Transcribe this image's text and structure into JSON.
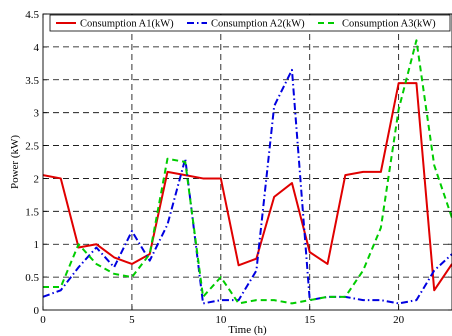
{
  "chart_data": {
    "type": "line",
    "xlabel": "Time (h)",
    "ylabel": "Power (kW)",
    "xlim": [
      0,
      23
    ],
    "ylim": [
      0,
      4.5
    ],
    "xticks": [
      0,
      5,
      10,
      15,
      20
    ],
    "yticks": [
      0,
      0.5,
      1,
      1.5,
      2,
      2.5,
      3,
      3.5,
      4,
      4.5
    ],
    "grid": true,
    "legend": "top",
    "x": [
      0,
      1,
      2,
      3,
      4,
      5,
      6,
      7,
      8,
      9,
      10,
      11,
      12,
      13,
      14,
      15,
      16,
      17,
      18,
      19,
      20,
      21,
      22,
      23
    ],
    "series": [
      {
        "name": "Consumption A1(kW)",
        "color": "#e00000",
        "style": "solid",
        "values": [
          2.05,
          2.0,
          0.95,
          1.0,
          0.8,
          0.7,
          0.85,
          2.1,
          2.05,
          2.0,
          2.0,
          0.68,
          0.78,
          1.72,
          1.93,
          0.88,
          0.7,
          2.05,
          2.1,
          2.1,
          3.45,
          3.45,
          0.3,
          0.7
        ]
      },
      {
        "name": "Consumption A2(kW)",
        "color": "#0000e0",
        "style": "dashdot",
        "values": [
          0.2,
          0.3,
          0.65,
          0.95,
          0.65,
          1.2,
          0.75,
          1.3,
          2.3,
          0.1,
          0.15,
          0.15,
          0.6,
          3.1,
          3.65,
          0.15,
          0.2,
          0.2,
          0.15,
          0.15,
          0.1,
          0.15,
          0.6,
          0.85
        ]
      },
      {
        "name": "Consumption A3(kW)",
        "color": "#00cc00",
        "style": "dashed",
        "values": [
          0.35,
          0.35,
          1.0,
          0.7,
          0.55,
          0.5,
          0.85,
          2.3,
          2.25,
          0.2,
          0.5,
          0.1,
          0.15,
          0.15,
          0.1,
          0.15,
          0.2,
          0.2,
          0.6,
          1.25,
          3.05,
          4.1,
          2.2,
          1.4
        ]
      }
    ]
  }
}
